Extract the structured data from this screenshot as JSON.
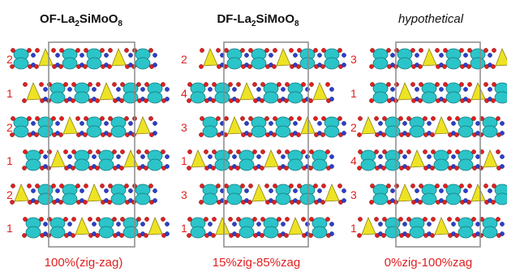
{
  "panels": [
    {
      "title_main": "OF-La",
      "title_sub1": "2",
      "title_mid": "SiMoO",
      "title_sub2": "8",
      "title_italic": "",
      "row_labels": [
        "2",
        "1",
        "2",
        "1",
        "2",
        "1"
      ],
      "caption": "100%(zig-zag)"
    },
    {
      "title_main": "DF-La",
      "title_sub1": "2",
      "title_mid": "SiMoO",
      "title_sub2": "8",
      "title_italic": "",
      "row_labels": [
        "2",
        "4",
        "3",
        "1",
        "3",
        "1"
      ],
      "caption": "15%zig-85%zag"
    },
    {
      "title_main": "",
      "title_sub1": "",
      "title_mid": "",
      "title_sub2": "",
      "title_italic": "hypothetical",
      "row_labels": [
        "3",
        "1",
        "2",
        "4",
        "3",
        "1"
      ],
      "caption": "0%zig-100%zag"
    }
  ],
  "colors": {
    "cyan_polyhedron": "#2bc4c8",
    "yellow_polyhedron": "#ede324",
    "oxygen": "#e02020",
    "lanthanum": "#2d3fc8",
    "cell_box": "#8a8a8a",
    "label_text": "#e02020"
  },
  "legend_items": [
    "cyan-polyhedron",
    "yellow-tetrahedron",
    "oxygen-atom",
    "la-atom"
  ]
}
